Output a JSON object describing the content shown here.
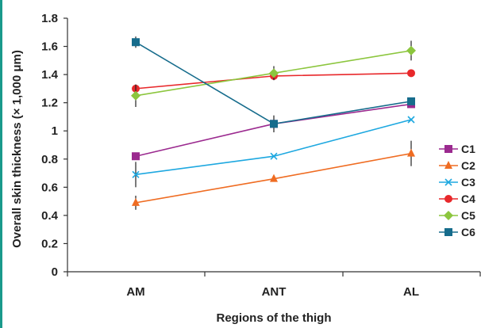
{
  "chart_data": {
    "type": "line",
    "categories": [
      "AM",
      "ANT",
      "AL"
    ],
    "xlabel": "Regions of the thigh",
    "ylabel": "Overall skin thickness (× 1,000 μm)",
    "ylim": [
      0,
      1.8
    ],
    "yticks": [
      0,
      0.2,
      0.4,
      0.6,
      0.8,
      1,
      1.2,
      1.4,
      1.6,
      1.8
    ],
    "ytick_labels": [
      "0",
      "0.2",
      "0.4",
      "0.6",
      "0.8",
      "1",
      "1.2",
      "1.4",
      "1.6",
      "1.8"
    ],
    "grid": false,
    "legend_position": "right",
    "series": [
      {
        "name": "C1",
        "values": [
          0.82,
          1.05,
          1.19
        ],
        "errors": [
          0.02,
          0.02,
          0.02
        ],
        "color": "#9b2a8f",
        "marker": "square"
      },
      {
        "name": "C2",
        "values": [
          0.49,
          0.66,
          0.84
        ],
        "errors": [
          0.05,
          0.0,
          0.09
        ],
        "color": "#ef6c22",
        "marker": "triangle"
      },
      {
        "name": "C3",
        "values": [
          0.69,
          0.82,
          1.08
        ],
        "errors": [
          0.09,
          0.0,
          0.0
        ],
        "color": "#1ea8e0",
        "marker": "x"
      },
      {
        "name": "C4",
        "values": [
          1.3,
          1.39,
          1.41
        ],
        "errors": [
          0.0,
          0.0,
          0.0
        ],
        "color": "#e8282b",
        "marker": "circle"
      },
      {
        "name": "C5",
        "values": [
          1.25,
          1.41,
          1.57
        ],
        "errors": [
          0.08,
          0.05,
          0.07
        ],
        "color": "#8cc63e",
        "marker": "diamond"
      },
      {
        "name": "C6",
        "values": [
          1.63,
          1.05,
          1.21
        ],
        "errors": [
          0.04,
          0.06,
          0.0
        ],
        "color": "#166c8c",
        "marker": "square"
      }
    ]
  }
}
